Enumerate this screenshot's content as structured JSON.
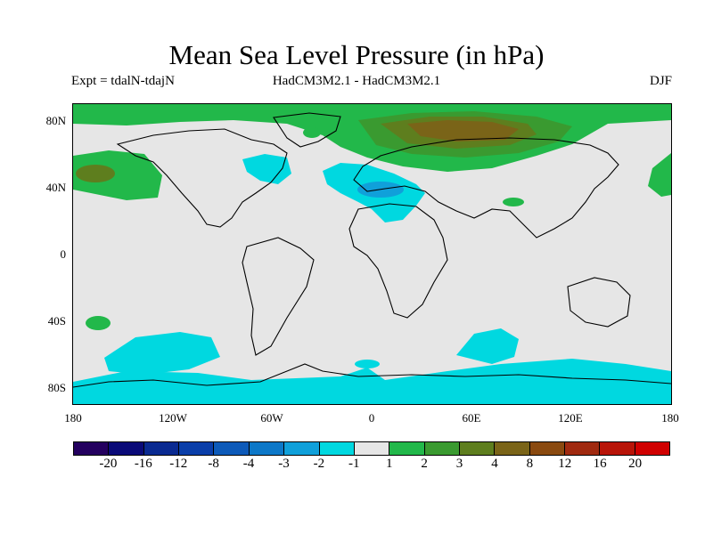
{
  "title": "Mean Sea Level Pressure (in hPa)",
  "expt_label": "Expt = tdalN-tdajN",
  "model_label": "HadCM3M2.1 - HadCM3M2.1",
  "season_label": "DJF",
  "lat_labels": [
    "80N",
    "40N",
    "0",
    "40S",
    "80S"
  ],
  "lon_labels": [
    "180",
    "120W",
    "60W",
    "0",
    "60E",
    "120E",
    "180"
  ],
  "colorbar": {
    "colors": [
      "#24005f",
      "#0a0a78",
      "#0a2a91",
      "#0a3ea9",
      "#0d5ab9",
      "#0d78c8",
      "#10a0da",
      "#00d8e0",
      "#e6e6e6",
      "#22b84a",
      "#3a9a30",
      "#5e7e1e",
      "#7a6418",
      "#8a4a10",
      "#a02a10",
      "#b81408",
      "#d00000"
    ],
    "labels": [
      "-20",
      "-16",
      "-12",
      "-8",
      "-4",
      "-3",
      "-2",
      "-1",
      "1",
      "2",
      "3",
      "4",
      "8",
      "12",
      "16",
      "20"
    ]
  }
}
